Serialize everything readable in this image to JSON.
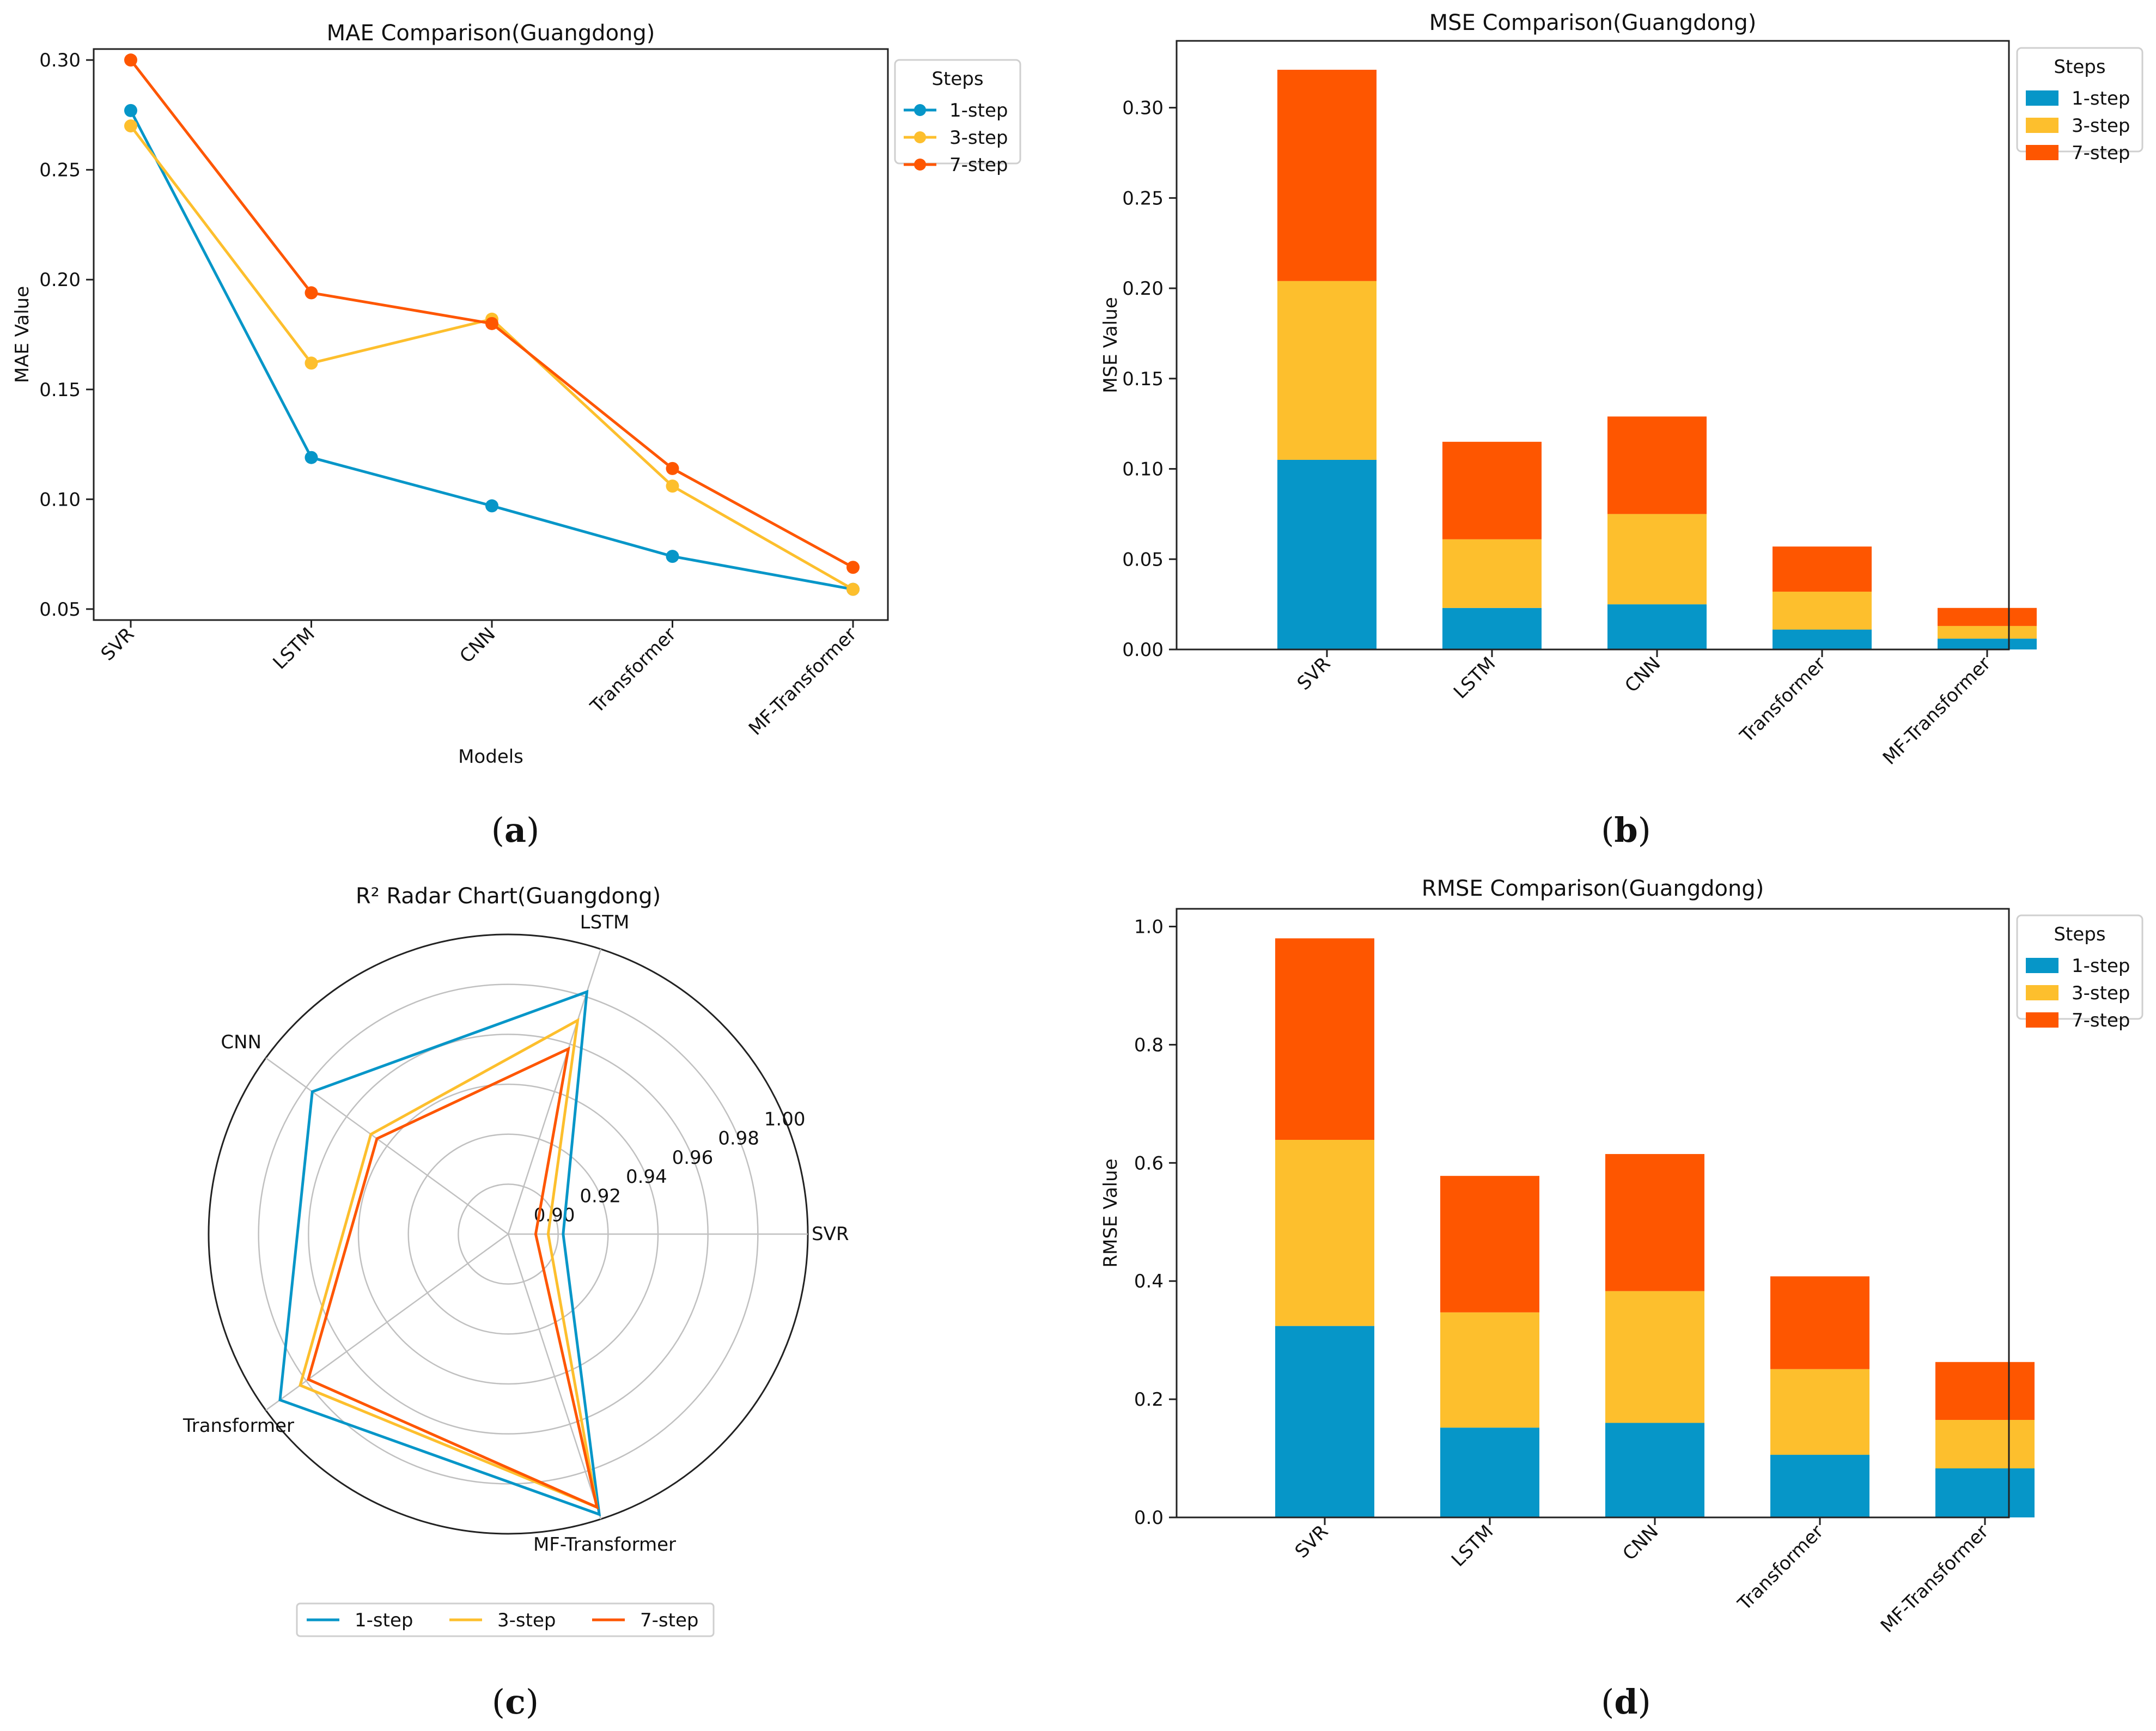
{
  "colors": {
    "step1": "#0696c8",
    "step3": "#fdbf2d",
    "step7": "#fe5600",
    "grid": "#c0c0c0",
    "axis": "#222222"
  },
  "panel_labels": [
    "a",
    "b",
    "c",
    "d"
  ],
  "chart_data": [
    {
      "type": "line",
      "title": "MAE Comparison(Guangdong)",
      "xlabel": "Models",
      "ylabel": "MAE Value",
      "categories": [
        "SVR",
        "LSTM",
        "CNN",
        "Transformer",
        "MF-Transformer"
      ],
      "ylim": [
        0.045,
        0.305
      ],
      "yticks": [
        0.05,
        0.1,
        0.15,
        0.2,
        0.25,
        0.3
      ],
      "ytick_labels": [
        "0.05",
        "0.10",
        "0.15",
        "0.20",
        "0.25",
        "0.30"
      ],
      "legend_title": "Steps",
      "legend_position": "top-right-outside",
      "series": [
        {
          "name": "1-step",
          "values": [
            0.277,
            0.119,
            0.097,
            0.074,
            0.059
          ]
        },
        {
          "name": "3-step",
          "values": [
            0.27,
            0.162,
            0.182,
            0.106,
            0.059
          ]
        },
        {
          "name": "7-step",
          "values": [
            0.3,
            0.194,
            0.18,
            0.114,
            0.069
          ]
        }
      ]
    },
    {
      "type": "bar",
      "stacked": true,
      "title": "MSE Comparison(Guangdong)",
      "xlabel": "",
      "ylabel": "MSE Value",
      "categories": [
        "SVR",
        "LSTM",
        "CNN",
        "Transformer",
        "MF-Transformer"
      ],
      "ylim": [
        0,
        0.337
      ],
      "yticks": [
        0,
        0.05,
        0.1,
        0.15,
        0.2,
        0.25,
        0.3
      ],
      "ytick_labels": [
        "0.00",
        "0.05",
        "0.10",
        "0.15",
        "0.20",
        "0.25",
        "0.30"
      ],
      "legend_title": "Steps",
      "legend_position": "top-right-outside",
      "series": [
        {
          "name": "1-step",
          "values": [
            0.105,
            0.023,
            0.025,
            0.011,
            0.006
          ]
        },
        {
          "name": "3-step",
          "values": [
            0.099,
            0.038,
            0.05,
            0.021,
            0.007
          ]
        },
        {
          "name": "7-step",
          "values": [
            0.117,
            0.054,
            0.054,
            0.025,
            0.01
          ]
        }
      ]
    },
    {
      "type": "radar",
      "title": "R² Radar Chart(Guangdong)",
      "categories": [
        "SVR",
        "LSTM",
        "CNN",
        "Transformer",
        "MF-Transformer"
      ],
      "rlim": [
        0.88,
        1.0
      ],
      "rticks": [
        0.9,
        0.92,
        0.94,
        0.96,
        0.98,
        1.0
      ],
      "rtick_labels": [
        "0.90",
        "0.92",
        "0.94",
        "0.96",
        "0.98",
        "1.00"
      ],
      "legend_position": "bottom",
      "series": [
        {
          "name": "1-step",
          "values": [
            0.902,
            0.982,
            0.977,
            0.993,
            0.998
          ]
        },
        {
          "name": "3-step",
          "values": [
            0.896,
            0.97,
            0.948,
            0.983,
            0.995
          ]
        },
        {
          "name": "7-step",
          "values": [
            0.891,
            0.958,
            0.945,
            0.979,
            0.995
          ]
        }
      ]
    },
    {
      "type": "bar",
      "stacked": true,
      "title": "RMSE Comparison(Guangdong)",
      "xlabel": "",
      "ylabel": "RMSE Value",
      "categories": [
        "SVR",
        "LSTM",
        "CNN",
        "Transformer",
        "MF-Transformer"
      ],
      "ylim": [
        0,
        1.03
      ],
      "yticks": [
        0,
        0.2,
        0.4,
        0.6,
        0.8,
        1.0
      ],
      "ytick_labels": [
        "0.0",
        "0.2",
        "0.4",
        "0.6",
        "0.8",
        "1.0"
      ],
      "legend_title": "Steps",
      "legend_position": "top-right-outside",
      "series": [
        {
          "name": "1-step",
          "values": [
            0.324,
            0.152,
            0.16,
            0.106,
            0.083
          ]
        },
        {
          "name": "3-step",
          "values": [
            0.315,
            0.195,
            0.223,
            0.145,
            0.082
          ]
        },
        {
          "name": "7-step",
          "values": [
            0.341,
            0.231,
            0.232,
            0.157,
            0.098
          ]
        }
      ]
    }
  ]
}
